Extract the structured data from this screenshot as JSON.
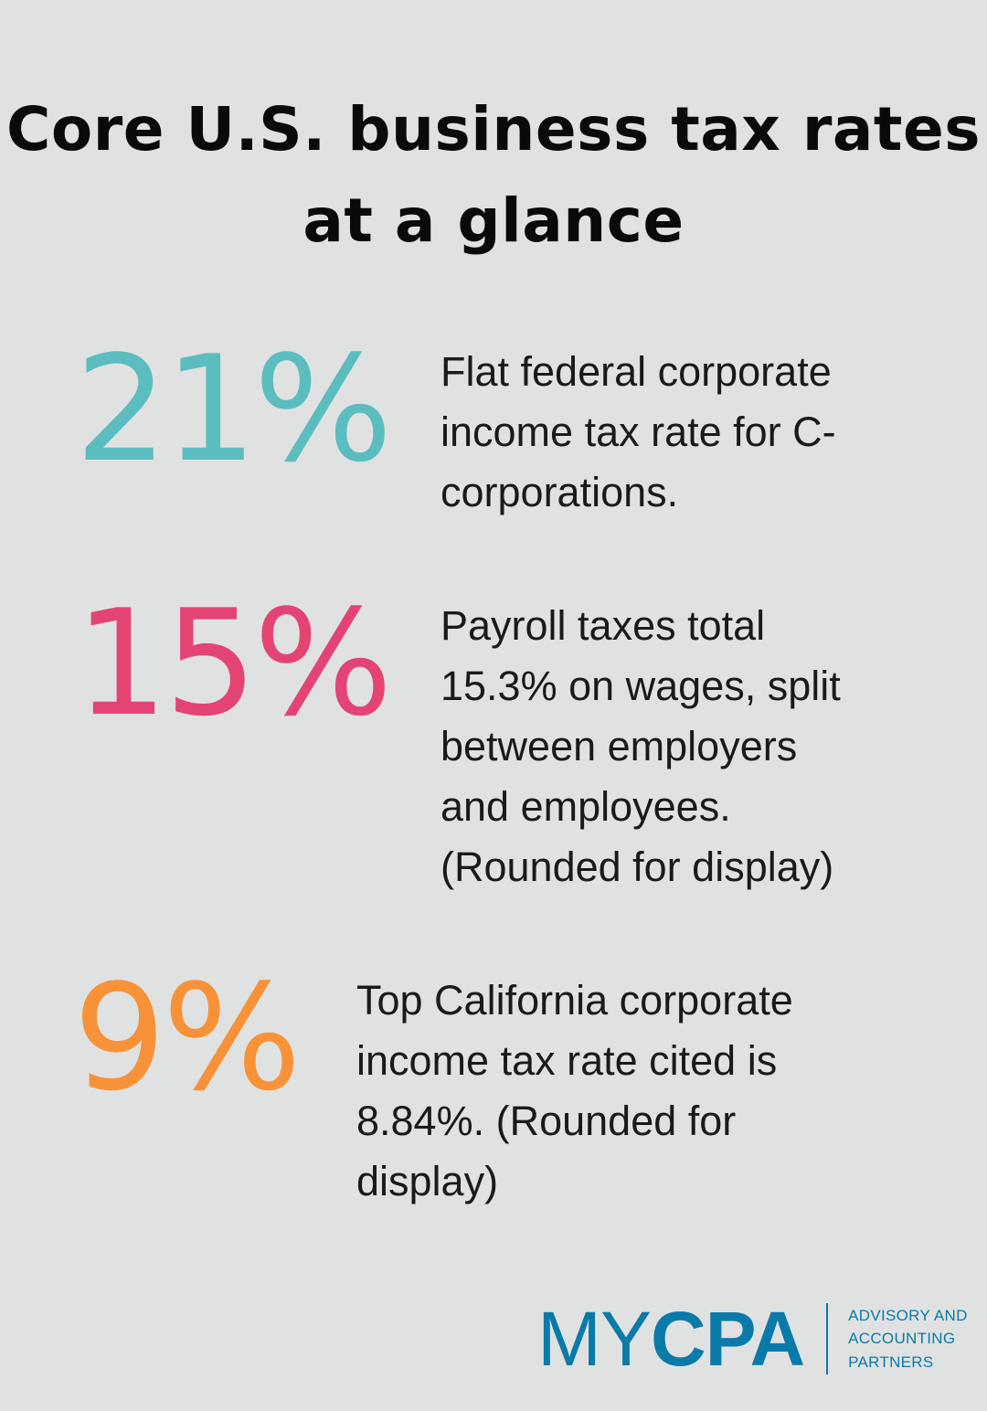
{
  "title": {
    "line1": "Core U.S. business tax rates",
    "line2": "at a glance"
  },
  "stats": [
    {
      "value": "21%",
      "color": "#5bbdbf",
      "lines": [
        "Flat federal corporate",
        "income tax rate for C-",
        "corporations."
      ]
    },
    {
      "value": "15%",
      "color": "#e44475",
      "lines": [
        "Payroll taxes total",
        "15.3% on wages, split",
        "between employers",
        "and employees.",
        "(Rounded for display)"
      ]
    },
    {
      "value": "9%",
      "color": "#f79239",
      "lines": [
        "Top California corporate",
        "income tax rate cited is",
        "8.84%. (Rounded for",
        "display)"
      ]
    }
  ],
  "logo": {
    "my": "MY",
    "cpa": "CPA",
    "tagline": [
      "ADVISORY AND",
      "ACCOUNTING",
      "PARTNERS"
    ],
    "color": "#0a7aa8"
  }
}
